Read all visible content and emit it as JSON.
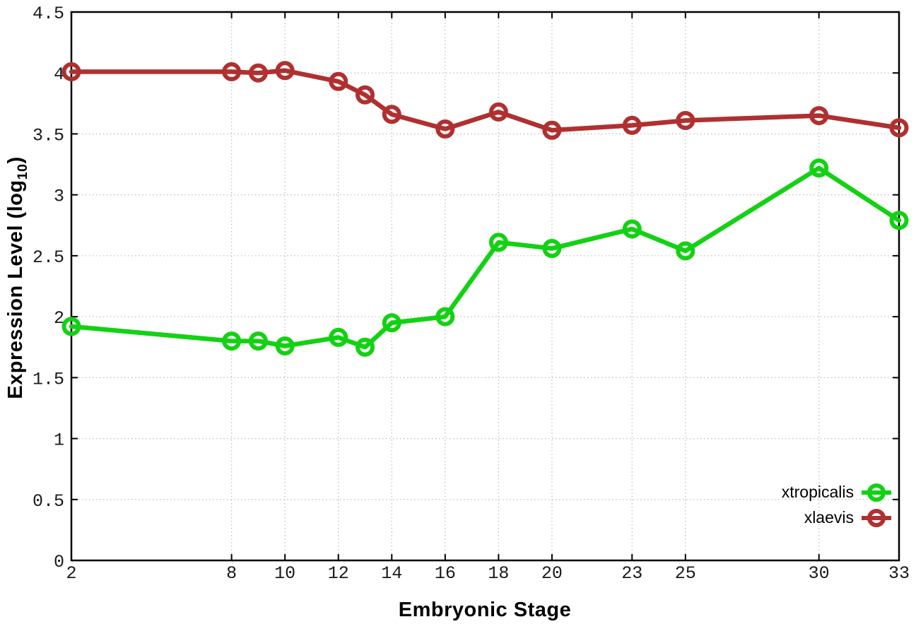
{
  "chart_data": {
    "type": "line",
    "title": "",
    "xlabel": "Embryonic Stage",
    "ylabel_main": "Expression Level (log",
    "ylabel_sub": "10",
    "ylabel_end": ")",
    "xlim": [
      2,
      33
    ],
    "ylim": [
      0,
      4.5
    ],
    "grid": true,
    "grid_style": "dotted",
    "legend_position": "bottom-right",
    "x_ticks": [
      2,
      8,
      10,
      12,
      14,
      16,
      18,
      20,
      23,
      25,
      30,
      33
    ],
    "x_tick_labels": [
      "2",
      "8",
      "10",
      "12",
      "14",
      "16",
      "18",
      "20",
      "23",
      "25",
      "30",
      "33"
    ],
    "y_ticks": [
      0,
      0.5,
      1,
      1.5,
      2,
      2.5,
      3,
      3.5,
      4,
      4.5
    ],
    "y_tick_labels": [
      "0",
      "0.5",
      "1",
      "1.5",
      "2",
      "2.5",
      "3",
      "3.5",
      "4",
      "4.5"
    ],
    "x": [
      2,
      8,
      9,
      10,
      12,
      13,
      14,
      16,
      18,
      20,
      23,
      25,
      30,
      33
    ],
    "series": [
      {
        "name": "xtropicalis",
        "color": "#13d113",
        "marker": "open-circle",
        "values": [
          1.92,
          1.8,
          1.8,
          1.76,
          1.83,
          1.75,
          1.95,
          2.0,
          2.61,
          2.56,
          2.72,
          2.54,
          3.22,
          2.79
        ]
      },
      {
        "name": "xlaevis",
        "color": "#b03030",
        "marker": "open-circle",
        "values": [
          4.01,
          4.01,
          4.0,
          4.02,
          3.93,
          3.82,
          3.66,
          3.54,
          3.68,
          3.53,
          3.57,
          3.61,
          3.65,
          3.55
        ]
      }
    ],
    "colors": {
      "border": "#000000",
      "grid": "#c0c0c0",
      "tick_label": "#1a1a1a",
      "background": "#ffffff"
    }
  }
}
